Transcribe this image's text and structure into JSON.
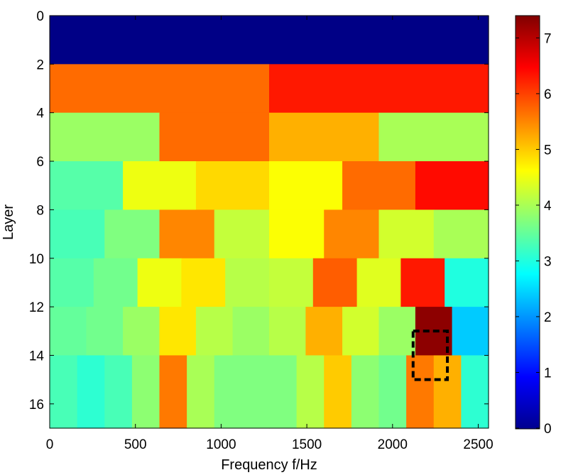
{
  "chart_data": {
    "type": "heatmap",
    "title": "",
    "xlabel": "Frequency f/Hz",
    "ylabel": "Layer",
    "xlim": [
      0,
      2560
    ],
    "ylim": [
      17,
      0
    ],
    "x_ticks": [
      "0",
      "500",
      "1000",
      "1500",
      "2000",
      "2500"
    ],
    "y_ticks": [
      "0",
      "2",
      "4",
      "6",
      "8",
      "10",
      "12",
      "14",
      "16"
    ],
    "colorbar": {
      "colormap": "jet",
      "range": [
        0,
        7.4
      ],
      "ticks": [
        "0",
        "1",
        "2",
        "3",
        "4",
        "5",
        "6",
        "7"
      ]
    },
    "highlight": {
      "x": [
        2120,
        2320
      ],
      "y": [
        13,
        15
      ],
      "style": "dashed-black-box"
    },
    "bands": [
      {
        "layers": [
          0,
          2
        ],
        "cells": [
          [
            0,
            2560,
            0.05
          ]
        ]
      },
      {
        "layers": [
          2,
          4
        ],
        "cells": [
          [
            0,
            1280,
            5.7
          ],
          [
            1280,
            2560,
            6.3
          ]
        ]
      },
      {
        "layers": [
          4,
          6
        ],
        "cells": [
          [
            0,
            640,
            3.9
          ],
          [
            640,
            1280,
            5.7
          ],
          [
            1280,
            1920,
            5.2
          ],
          [
            1920,
            2560,
            4.0
          ]
        ]
      },
      {
        "layers": [
          6,
          8
        ],
        "cells": [
          [
            0,
            427,
            3.4
          ],
          [
            427,
            853,
            4.5
          ],
          [
            853,
            1280,
            4.9
          ],
          [
            1280,
            1707,
            4.6
          ],
          [
            1707,
            2133,
            5.7
          ],
          [
            2133,
            2560,
            6.4
          ]
        ]
      },
      {
        "layers": [
          8,
          10
        ],
        "cells": [
          [
            0,
            320,
            3.3
          ],
          [
            320,
            640,
            3.7
          ],
          [
            640,
            960,
            5.5
          ],
          [
            960,
            1280,
            4.2
          ],
          [
            1280,
            1600,
            4.6
          ],
          [
            1600,
            1920,
            5.5
          ],
          [
            1920,
            2240,
            4.3
          ],
          [
            2240,
            2560,
            4.0
          ]
        ]
      },
      {
        "layers": [
          10,
          12
        ],
        "cells": [
          [
            0,
            256,
            3.4
          ],
          [
            256,
            512,
            3.6
          ],
          [
            512,
            768,
            4.5
          ],
          [
            768,
            1024,
            4.8
          ],
          [
            1024,
            1280,
            4.1
          ],
          [
            1280,
            1536,
            4.2
          ],
          [
            1536,
            1792,
            5.8
          ],
          [
            1792,
            2048,
            4.4
          ],
          [
            2048,
            2304,
            6.3
          ],
          [
            2304,
            2560,
            3.0
          ]
        ]
      },
      {
        "layers": [
          12,
          14
        ],
        "cells": [
          [
            0,
            213,
            3.5
          ],
          [
            213,
            427,
            3.6
          ],
          [
            427,
            640,
            3.9
          ],
          [
            640,
            853,
            4.8
          ],
          [
            853,
            1067,
            4.1
          ],
          [
            1067,
            1280,
            3.9
          ],
          [
            1280,
            1493,
            4.1
          ],
          [
            1493,
            1707,
            5.2
          ],
          [
            1707,
            1920,
            4.3
          ],
          [
            1920,
            2133,
            3.9
          ],
          [
            2133,
            2347,
            7.3
          ],
          [
            2347,
            2560,
            2.4
          ]
        ]
      },
      {
        "layers": [
          14,
          17
        ],
        "cells": [
          [
            0,
            160,
            3.3
          ],
          [
            160,
            320,
            3.1
          ],
          [
            320,
            480,
            3.3
          ],
          [
            480,
            640,
            3.8
          ],
          [
            640,
            800,
            5.6
          ],
          [
            800,
            960,
            4.0
          ],
          [
            960,
            1120,
            3.7
          ],
          [
            1120,
            1280,
            3.7
          ],
          [
            1280,
            1440,
            3.7
          ],
          [
            1440,
            1600,
            4.1
          ],
          [
            1600,
            1760,
            5.0
          ],
          [
            1760,
            1920,
            3.8
          ],
          [
            1920,
            2080,
            3.6
          ],
          [
            2080,
            2240,
            5.6
          ],
          [
            2240,
            2400,
            5.2
          ],
          [
            2400,
            2560,
            3.1
          ]
        ]
      }
    ]
  }
}
